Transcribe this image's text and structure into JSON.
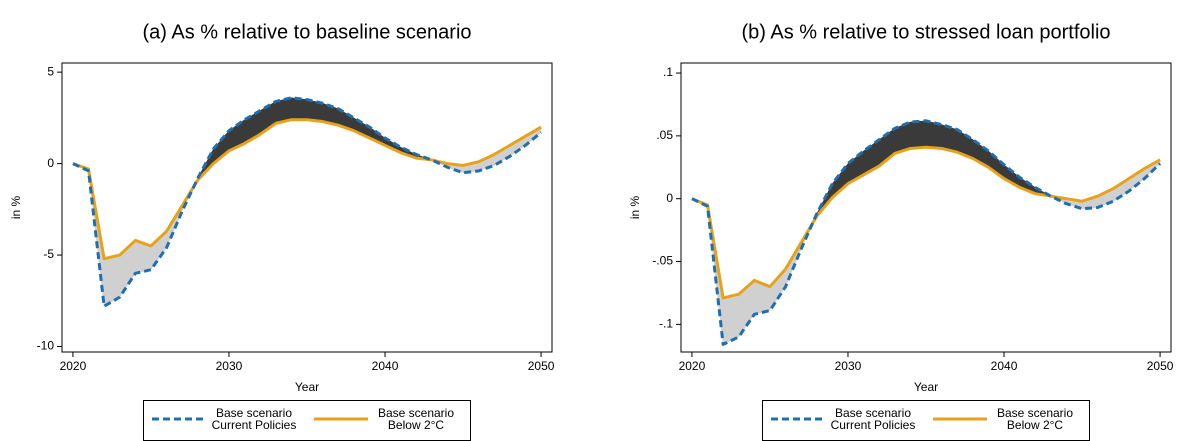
{
  "chart_data": [
    {
      "type": "line",
      "title": "(a)  As % relative to baseline scenario",
      "xlabel": "Year",
      "ylabel": "in %",
      "x": [
        2020,
        2021,
        2022,
        2023,
        2024,
        2025,
        2026,
        2027,
        2028,
        2029,
        2030,
        2031,
        2032,
        2033,
        2034,
        2035,
        2036,
        2037,
        2038,
        2039,
        2040,
        2041,
        2042,
        2043,
        2044,
        2045,
        2046,
        2047,
        2048,
        2049,
        2050
      ],
      "series": [
        {
          "name": "Base scenario Current Policies",
          "color": "#1f6fb0",
          "dash": true,
          "values": [
            0,
            -0.4,
            -7.8,
            -7.3,
            -6.0,
            -5.8,
            -4.6,
            -2.6,
            -0.8,
            0.8,
            1.8,
            2.4,
            2.9,
            3.4,
            3.6,
            3.5,
            3.3,
            3.0,
            2.5,
            2.0,
            1.4,
            0.9,
            0.5,
            0.2,
            -0.2,
            -0.5,
            -0.4,
            -0.1,
            0.4,
            1.0,
            1.7
          ]
        },
        {
          "name": "Base scenario Below 2°C",
          "color": "#e8a21a",
          "dash": false,
          "values": [
            0,
            -0.3,
            -5.2,
            -5.0,
            -4.2,
            -4.5,
            -3.7,
            -2.3,
            -0.9,
            0.0,
            0.7,
            1.1,
            1.6,
            2.2,
            2.4,
            2.4,
            2.3,
            2.1,
            1.8,
            1.4,
            1.0,
            0.6,
            0.3,
            0.2,
            0.0,
            -0.1,
            0.1,
            0.5,
            1.0,
            1.5,
            2.0
          ]
        }
      ],
      "xlim": [
        2019.3,
        2050.7
      ],
      "xticks": [
        2020,
        2030,
        2040,
        2050
      ],
      "ylim": [
        -10.3,
        5.5
      ],
      "yticks": [
        -10,
        -5,
        0,
        5
      ],
      "grid": false
    },
    {
      "type": "line",
      "title": "(b)  As % relative to stressed loan portfolio",
      "xlabel": "Year",
      "ylabel": "in %",
      "x": [
        2020,
        2021,
        2022,
        2023,
        2024,
        2025,
        2026,
        2027,
        2028,
        2029,
        2030,
        2031,
        2032,
        2033,
        2034,
        2035,
        2036,
        2037,
        2038,
        2039,
        2040,
        2041,
        2042,
        2043,
        2044,
        2045,
        2046,
        2047,
        2048,
        2049,
        2050
      ],
      "series": [
        {
          "name": "Base scenario Current Policies",
          "color": "#1f6fb0",
          "dash": true,
          "values": [
            0,
            -0.006,
            -0.116,
            -0.11,
            -0.092,
            -0.089,
            -0.07,
            -0.04,
            -0.012,
            0.012,
            0.028,
            0.038,
            0.047,
            0.056,
            0.061,
            0.062,
            0.059,
            0.055,
            0.047,
            0.038,
            0.027,
            0.017,
            0.009,
            0.002,
            -0.004,
            -0.008,
            -0.007,
            -0.002,
            0.006,
            0.016,
            0.028
          ]
        },
        {
          "name": "Base scenario Below 2°C",
          "color": "#e8a21a",
          "dash": false,
          "values": [
            0,
            -0.005,
            -0.079,
            -0.076,
            -0.065,
            -0.07,
            -0.056,
            -0.035,
            -0.014,
            0.001,
            0.012,
            0.019,
            0.026,
            0.036,
            0.04,
            0.041,
            0.04,
            0.037,
            0.032,
            0.025,
            0.016,
            0.009,
            0.004,
            0.002,
            0.0,
            -0.002,
            0.002,
            0.008,
            0.016,
            0.024,
            0.031
          ]
        }
      ],
      "xlim": [
        2019.3,
        2050.7
      ],
      "xticks": [
        2020,
        2030,
        2040,
        2050
      ],
      "ylim": [
        -0.122,
        0.108
      ],
      "yticks": [
        {
          "value": -0.1,
          "label": "-.1"
        },
        {
          "value": -0.05,
          "label": "-.05"
        },
        0,
        {
          "value": 0.05,
          "label": ".05"
        },
        {
          "value": 0.1,
          "label": ".1"
        }
      ],
      "grid": false
    }
  ]
}
